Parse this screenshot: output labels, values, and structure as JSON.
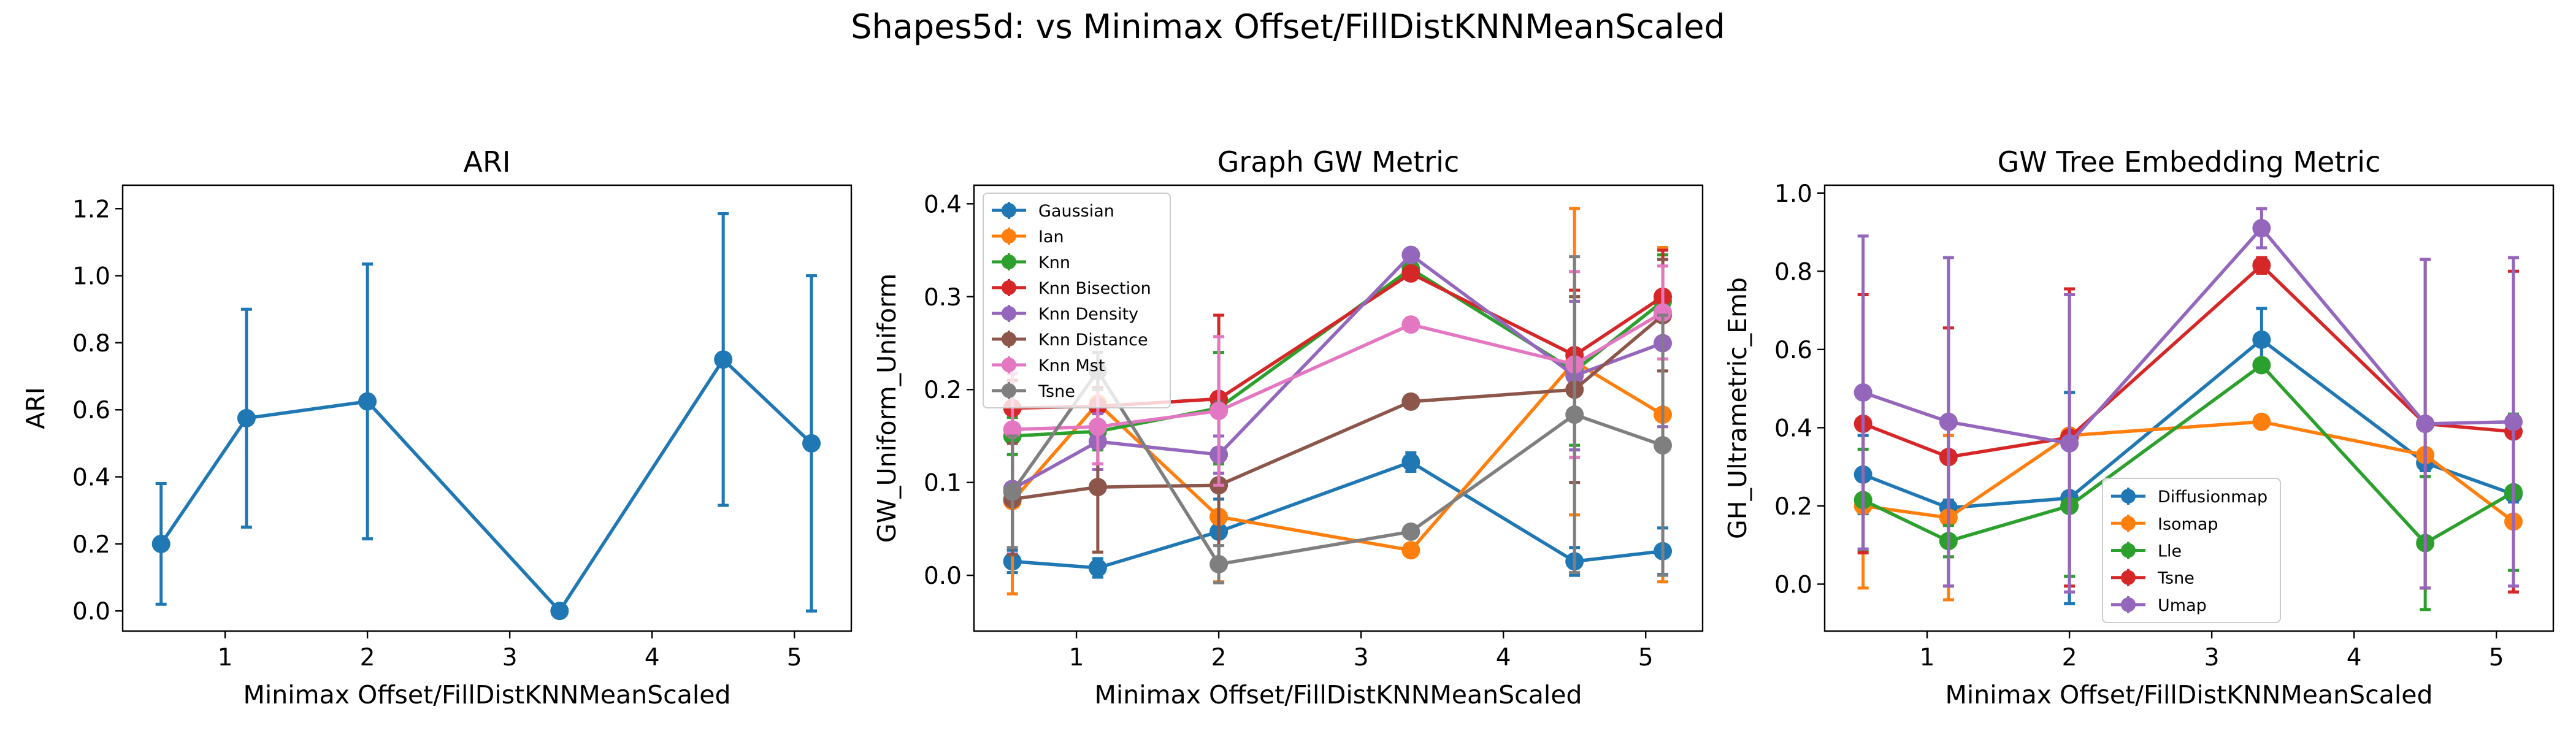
{
  "figure": {
    "title": "Shapes5d: vs Minimax Offset/FillDistKNNMeanScaled"
  },
  "chart_data": [
    {
      "type": "line",
      "title": "ARI",
      "xlabel": "Minimax Offset/FillDistKNNMeanScaled",
      "ylabel": "ARI",
      "xlim": [
        0.28,
        5.4
      ],
      "ylim": [
        -0.06,
        1.27
      ],
      "xticks": [
        1,
        2,
        3,
        4,
        5
      ],
      "yticks": [
        0.0,
        0.2,
        0.4,
        0.6,
        0.8,
        1.0,
        1.2
      ],
      "ytick_labels": [
        "0.0",
        "0.2",
        "0.4",
        "0.6",
        "0.8",
        "1.0",
        "1.2"
      ],
      "grid": false,
      "legend": null,
      "series": [
        {
          "color": "#1f77b4",
          "x": [
            0.55,
            1.15,
            2.0,
            3.35,
            4.5,
            5.12
          ],
          "y": [
            0.2,
            0.575,
            0.625,
            0.0,
            0.75,
            0.5
          ],
          "err": [
            0.18,
            0.325,
            0.41,
            0.0,
            0.435,
            0.5
          ]
        }
      ]
    },
    {
      "type": "line",
      "title": "Graph GW Metric",
      "xlabel": "Minimax Offset/FillDistKNNMeanScaled",
      "ylabel": "GW_Uniform_Uniform",
      "xlim": [
        0.28,
        5.4
      ],
      "ylim": [
        -0.06,
        0.42
      ],
      "xticks": [
        1,
        2,
        3,
        4,
        5
      ],
      "yticks": [
        0.0,
        0.1,
        0.2,
        0.3,
        0.4
      ],
      "ytick_labels": [
        "0.0",
        "0.1",
        "0.2",
        "0.3",
        "0.4"
      ],
      "grid": false,
      "legend": "upper left",
      "series": [
        {
          "name": "Gaussian",
          "color": "#1f77b4",
          "x": [
            0.55,
            1.15,
            2.0,
            3.35,
            4.5,
            5.12
          ],
          "y": [
            0.015,
            0.008,
            0.047,
            0.122,
            0.015,
            0.026
          ],
          "err": [
            0.012,
            0.01,
            0.035,
            0.01,
            0.015,
            0.025
          ]
        },
        {
          "name": "Ian",
          "color": "#ff7f0e",
          "x": [
            0.55,
            1.15,
            2.0,
            3.35,
            4.5,
            5.12
          ],
          "y": [
            0.08,
            0.185,
            0.063,
            0.027,
            0.23,
            0.173
          ],
          "err": [
            0.1,
            0.03,
            0.07,
            0.0,
            0.165,
            0.18
          ]
        },
        {
          "name": "Knn",
          "color": "#2ca02c",
          "x": [
            0.55,
            1.15,
            2.0,
            3.35,
            4.5,
            5.12
          ],
          "y": [
            0.15,
            0.155,
            0.18,
            0.33,
            0.22,
            0.295
          ],
          "err": [
            0.02,
            0.02,
            0.06,
            0.005,
            0.08,
            0.05
          ]
        },
        {
          "name": "Knn Bisection",
          "color": "#d62728",
          "x": [
            0.55,
            1.15,
            2.0,
            3.35,
            4.5,
            5.12
          ],
          "y": [
            0.18,
            0.182,
            0.19,
            0.325,
            0.237,
            0.3
          ],
          "err": [
            0.03,
            0.02,
            0.09,
            0.005,
            0.07,
            0.05
          ]
        },
        {
          "name": "Knn Density",
          "color": "#9467bd",
          "x": [
            0.55,
            1.15,
            2.0,
            3.35,
            4.5,
            5.12
          ],
          "y": [
            0.093,
            0.144,
            0.13,
            0.345,
            0.215,
            0.25
          ],
          "err": [
            0.07,
            0.03,
            0.02,
            0.005,
            0.08,
            0.09
          ]
        },
        {
          "name": "Knn Distance",
          "color": "#8c564b",
          "x": [
            0.55,
            1.15,
            2.0,
            3.35,
            4.5,
            5.12
          ],
          "y": [
            0.082,
            0.095,
            0.097,
            0.187,
            0.2,
            0.28
          ],
          "err": [
            0.06,
            0.07,
            0.09,
            0.0,
            0.1,
            0.06
          ]
        },
        {
          "name": "Knn Mst",
          "color": "#e377c2",
          "x": [
            0.55,
            1.15,
            2.0,
            3.35,
            4.5,
            5.12
          ],
          "y": [
            0.157,
            0.16,
            0.177,
            0.27,
            0.227,
            0.283
          ],
          "err": [
            0.06,
            0.04,
            0.08,
            0.0,
            0.1,
            0.05
          ]
        },
        {
          "name": "Tsne",
          "color": "#7f7f7f",
          "x": [
            0.55,
            1.15,
            2.0,
            3.35,
            4.5,
            5.12
          ],
          "y": [
            0.09,
            0.22,
            0.012,
            0.047,
            0.173,
            0.14
          ],
          "err": [
            0.06,
            0.02,
            0.02,
            0.0,
            0.17,
            0.14
          ]
        }
      ]
    },
    {
      "type": "line",
      "title": "GW Tree Embedding Metric",
      "xlabel": "Minimax Offset/FillDistKNNMeanScaled",
      "ylabel": "GH_Ultrametric_Emb",
      "xlim": [
        0.28,
        5.4
      ],
      "ylim": [
        -0.12,
        1.02
      ],
      "xticks": [
        1,
        2,
        3,
        4,
        5
      ],
      "yticks": [
        0.0,
        0.2,
        0.4,
        0.6,
        0.8,
        1.0
      ],
      "ytick_labels": [
        "0.0",
        "0.2",
        "0.4",
        "0.6",
        "0.8",
        "1.0"
      ],
      "grid": false,
      "legend": "lower center",
      "series": [
        {
          "name": "Diffusionmap",
          "color": "#1f77b4",
          "x": [
            0.55,
            1.15,
            2.0,
            3.35,
            4.5,
            5.12
          ],
          "y": [
            0.28,
            0.195,
            0.22,
            0.625,
            0.31,
            0.23
          ],
          "err": [
            0.1,
            0.02,
            0.27,
            0.08,
            0.02,
            0.02
          ]
        },
        {
          "name": "Isomap",
          "color": "#ff7f0e",
          "x": [
            0.55,
            1.15,
            2.0,
            3.35,
            4.5,
            5.12
          ],
          "y": [
            0.2,
            0.17,
            0.38,
            0.415,
            0.33,
            0.16
          ],
          "err": [
            0.21,
            0.21,
            0.0,
            0.0,
            0.0,
            0.0
          ]
        },
        {
          "name": "Lle",
          "color": "#2ca02c",
          "x": [
            0.55,
            1.15,
            2.0,
            3.35,
            4.5,
            5.12
          ],
          "y": [
            0.215,
            0.11,
            0.2,
            0.56,
            0.105,
            0.235
          ],
          "err": [
            0.13,
            0.04,
            0.18,
            0.0,
            0.17,
            0.2
          ]
        },
        {
          "name": "Tsne",
          "color": "#d62728",
          "x": [
            0.55,
            1.15,
            2.0,
            3.35,
            4.5,
            5.12
          ],
          "y": [
            0.41,
            0.325,
            0.375,
            0.815,
            0.41,
            0.39
          ],
          "err": [
            0.33,
            0.33,
            0.38,
            0.02,
            0.42,
            0.41
          ]
        },
        {
          "name": "Umap",
          "color": "#9467bd",
          "x": [
            0.55,
            1.15,
            2.0,
            3.35,
            4.5,
            5.12
          ],
          "y": [
            0.49,
            0.415,
            0.36,
            0.91,
            0.41,
            0.415
          ],
          "err": [
            0.4,
            0.42,
            0.38,
            0.05,
            0.42,
            0.42
          ]
        }
      ]
    }
  ]
}
